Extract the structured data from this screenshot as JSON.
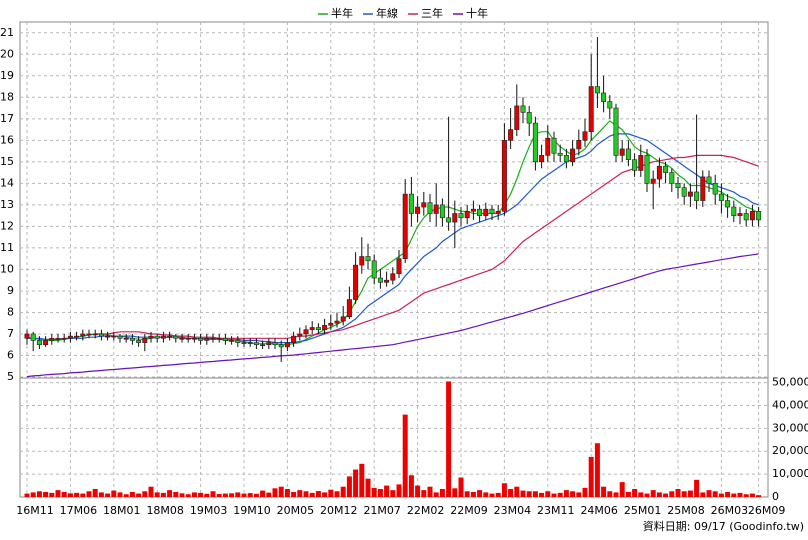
{
  "chart_data": [
    {
      "type": "candlestick",
      "categories": [
        "16M11",
        null,
        null,
        null,
        null,
        null,
        null,
        "17M06",
        null,
        null,
        null,
        null,
        null,
        null,
        "18M01",
        null,
        null,
        null,
        null,
        null,
        null,
        "18M08",
        null,
        null,
        null,
        null,
        null,
        null,
        "19M03",
        null,
        null,
        null,
        null,
        null,
        null,
        "19M10",
        null,
        null,
        null,
        null,
        null,
        null,
        "20M05",
        null,
        null,
        null,
        null,
        null,
        null,
        "20M12",
        null,
        null,
        null,
        null,
        null,
        null,
        "21M07",
        null,
        null,
        null,
        null,
        null,
        null,
        "22M02",
        null,
        null,
        null,
        null,
        null,
        null,
        "22M09",
        null,
        null,
        null,
        null,
        null,
        null,
        "23M04",
        null,
        null,
        null,
        null,
        null,
        null,
        "23M11",
        null,
        null,
        null,
        null,
        null,
        null,
        "24M06",
        null,
        null,
        null,
        null,
        null,
        null,
        "25M01",
        null,
        null,
        null,
        null,
        null,
        null,
        "25M08",
        null,
        null,
        null,
        null,
        null,
        null,
        "26M03",
        null,
        null,
        null,
        null,
        null,
        "26M09"
      ],
      "open": [
        6.8,
        7.0,
        6.7,
        6.5,
        6.7,
        6.8,
        6.8,
        6.8,
        6.9,
        6.9,
        7.0,
        7.0,
        7.0,
        6.9,
        6.9,
        6.9,
        6.8,
        6.8,
        6.7,
        6.6,
        6.8,
        6.9,
        6.8,
        6.9,
        6.9,
        6.8,
        6.8,
        6.8,
        6.8,
        6.7,
        6.8,
        6.8,
        6.8,
        6.7,
        6.7,
        6.6,
        6.6,
        6.6,
        6.5,
        6.5,
        6.6,
        6.5,
        6.4,
        6.6,
        6.9,
        7.0,
        7.2,
        7.3,
        7.2,
        7.4,
        7.5,
        7.6,
        7.8,
        8.6,
        10.2,
        10.6,
        10.4,
        9.6,
        9.4,
        9.5,
        9.8,
        10.5,
        13.5,
        12.6,
        12.9,
        13.1,
        12.6,
        13.0,
        12.4,
        12.2,
        12.6,
        12.4,
        12.7,
        12.8,
        12.5,
        12.8,
        12.6,
        12.7,
        16.0,
        16.5,
        17.6,
        17.3,
        16.8,
        15.0,
        15.3,
        16.1,
        15.4,
        15.3,
        15.0,
        15.6,
        16.0,
        16.4,
        18.5,
        18.2,
        17.8,
        17.5,
        15.3,
        15.6,
        15.1,
        14.6,
        15.3,
        14.0,
        14.2,
        14.8,
        14.5,
        14.0,
        13.8,
        13.4,
        13.6,
        13.2,
        14.3,
        14.0,
        13.5,
        13.2,
        12.9,
        12.5,
        12.6,
        12.3,
        12.7
      ],
      "high": [
        7.2,
        7.1,
        6.9,
        6.9,
        7.0,
        7.0,
        7.0,
        7.1,
        7.1,
        7.2,
        7.2,
        7.2,
        7.2,
        7.1,
        7.1,
        7.0,
        7.0,
        7.0,
        6.9,
        7.0,
        7.1,
        7.0,
        7.1,
        7.1,
        7.0,
        7.0,
        7.0,
        7.0,
        7.0,
        7.0,
        7.0,
        7.0,
        7.0,
        6.9,
        6.9,
        6.8,
        6.8,
        6.8,
        6.7,
        6.8,
        6.8,
        6.7,
        6.8,
        7.1,
        7.3,
        7.4,
        7.6,
        7.5,
        7.7,
        7.9,
        8.0,
        8.3,
        9.2,
        10.8,
        11.5,
        11.2,
        10.7,
        10.0,
        9.9,
        10.1,
        10.9,
        14.2,
        14.3,
        13.4,
        13.6,
        13.5,
        14.0,
        13.3,
        17.1,
        13.2,
        12.9,
        13.0,
        13.2,
        13.0,
        13.1,
        13.0,
        13.0,
        16.8,
        17.5,
        18.6,
        18.0,
        17.6,
        17.1,
        15.8,
        16.7,
        16.4,
        15.8,
        15.6,
        16.0,
        16.5,
        17.0,
        20.0,
        20.8,
        19.0,
        18.1,
        17.7,
        16.0,
        16.0,
        15.4,
        15.8,
        15.6,
        14.6,
        15.2,
        15.0,
        14.7,
        14.3,
        14.0,
        14.0,
        17.2,
        14.6,
        14.6,
        14.4,
        14.0,
        13.5,
        13.2,
        12.9,
        12.8,
        13.0,
        12.9
      ],
      "low": [
        6.5,
        6.2,
        6.3,
        6.4,
        6.5,
        6.6,
        6.6,
        6.6,
        6.7,
        6.7,
        6.8,
        6.8,
        6.7,
        6.7,
        6.7,
        6.6,
        6.6,
        6.5,
        6.4,
        6.2,
        6.6,
        6.6,
        6.6,
        6.7,
        6.6,
        6.6,
        6.6,
        6.6,
        6.5,
        6.5,
        6.6,
        6.6,
        6.5,
        6.5,
        6.4,
        6.4,
        6.4,
        6.3,
        6.3,
        6.3,
        6.3,
        5.7,
        6.2,
        6.4,
        6.7,
        6.8,
        7.0,
        7.0,
        7.0,
        7.2,
        7.3,
        7.4,
        7.7,
        8.4,
        9.8,
        10.0,
        9.3,
        9.1,
        9.2,
        9.3,
        9.6,
        10.3,
        12.0,
        12.2,
        12.5,
        12.2,
        12.0,
        12.0,
        11.8,
        11.0,
        12.0,
        12.1,
        12.3,
        12.2,
        12.3,
        12.3,
        12.3,
        12.5,
        15.6,
        16.2,
        16.8,
        16.2,
        14.6,
        14.7,
        15.0,
        15.0,
        15.0,
        14.7,
        14.8,
        15.3,
        15.7,
        16.0,
        17.5,
        17.3,
        17.0,
        15.0,
        15.0,
        14.8,
        14.3,
        14.3,
        13.6,
        12.8,
        13.8,
        14.0,
        13.6,
        13.3,
        13.0,
        12.9,
        12.8,
        12.9,
        13.6,
        13.0,
        12.6,
        12.4,
        12.2,
        12.1,
        12.0,
        12.0,
        12.0
      ],
      "close": [
        7.0,
        6.7,
        6.5,
        6.7,
        6.8,
        6.8,
        6.8,
        6.9,
        6.9,
        7.0,
        7.0,
        7.0,
        6.9,
        6.9,
        6.9,
        6.8,
        6.8,
        6.7,
        6.6,
        6.8,
        6.9,
        6.8,
        6.9,
        6.9,
        6.8,
        6.8,
        6.8,
        6.8,
        6.7,
        6.8,
        6.8,
        6.8,
        6.7,
        6.7,
        6.6,
        6.6,
        6.6,
        6.5,
        6.5,
        6.6,
        6.5,
        6.4,
        6.6,
        6.9,
        7.0,
        7.2,
        7.3,
        7.2,
        7.4,
        7.5,
        7.6,
        7.8,
        8.6,
        10.2,
        10.6,
        10.4,
        9.6,
        9.4,
        9.5,
        9.8,
        10.5,
        13.5,
        12.6,
        12.9,
        13.1,
        12.6,
        13.0,
        12.4,
        12.2,
        12.6,
        12.4,
        12.7,
        12.8,
        12.5,
        12.8,
        12.6,
        12.7,
        16.0,
        16.5,
        17.6,
        17.3,
        16.8,
        15.0,
        15.3,
        16.1,
        15.4,
        15.3,
        15.0,
        15.6,
        16.0,
        16.4,
        18.5,
        18.2,
        17.8,
        17.5,
        15.3,
        15.6,
        15.1,
        14.6,
        15.3,
        14.0,
        14.2,
        14.8,
        14.5,
        14.0,
        13.8,
        13.4,
        13.6,
        13.2,
        14.3,
        14.0,
        13.5,
        13.2,
        12.9,
        12.5,
        12.6,
        12.3,
        12.7,
        12.3
      ],
      "up_color": "#e00000",
      "down_color": "#22cc22",
      "series": [
        {
          "name": "半年",
          "color": "#18b018",
          "values": [
            6.85,
            6.8,
            6.75,
            6.7,
            6.7,
            6.7,
            6.75,
            6.8,
            6.85,
            6.9,
            6.95,
            7.0,
            7.0,
            6.95,
            6.9,
            6.9,
            6.85,
            6.8,
            6.75,
            6.75,
            6.8,
            6.85,
            6.85,
            6.85,
            6.85,
            6.8,
            6.8,
            6.8,
            6.75,
            6.75,
            6.75,
            6.75,
            6.7,
            6.7,
            6.65,
            6.65,
            6.6,
            6.55,
            6.55,
            6.55,
            6.55,
            6.5,
            6.5,
            6.55,
            6.6,
            6.75,
            6.9,
            7.05,
            7.2,
            7.3,
            7.45,
            7.6,
            8.0,
            8.5,
            9.0,
            9.6,
            9.8,
            10.0,
            10.2,
            10.4,
            10.6,
            10.8,
            11.4,
            12.0,
            12.4,
            12.7,
            12.8,
            12.9,
            12.9,
            12.8,
            12.7,
            12.7,
            12.6,
            12.6,
            12.6,
            12.6,
            12.6,
            13.0,
            13.5,
            14.2,
            15.0,
            15.7,
            16.3,
            16.4,
            16.4,
            16.0,
            15.7,
            15.5,
            15.3,
            15.4,
            15.6,
            16.0,
            16.3,
            16.6,
            16.9,
            16.7,
            16.5,
            16.1,
            15.7,
            15.5,
            15.4,
            15.2,
            15.0,
            14.9,
            14.7,
            14.4,
            14.2,
            13.9,
            13.9,
            13.9,
            13.8,
            13.7,
            13.6,
            13.4,
            13.3,
            13.1,
            12.9,
            12.8,
            12.6
          ]
        },
        {
          "name": "年線",
          "color": "#1e5ad2",
          "values": [
            6.8,
            6.8,
            6.8,
            6.75,
            6.75,
            6.75,
            6.8,
            6.8,
            6.8,
            6.8,
            6.85,
            6.85,
            6.9,
            6.9,
            6.9,
            6.9,
            6.9,
            6.9,
            6.85,
            6.85,
            6.85,
            6.85,
            6.85,
            6.85,
            6.85,
            6.85,
            6.8,
            6.8,
            6.8,
            6.8,
            6.8,
            6.8,
            6.75,
            6.75,
            6.75,
            6.7,
            6.7,
            6.7,
            6.65,
            6.65,
            6.6,
            6.6,
            6.6,
            6.6,
            6.65,
            6.7,
            6.8,
            6.9,
            7.0,
            7.1,
            7.2,
            7.3,
            7.5,
            7.7,
            8.0,
            8.3,
            8.5,
            8.7,
            8.9,
            9.1,
            9.3,
            9.7,
            10.0,
            10.3,
            10.6,
            10.8,
            11.0,
            11.3,
            11.5,
            11.7,
            11.9,
            12.0,
            12.1,
            12.2,
            12.3,
            12.4,
            12.5,
            12.6,
            12.8,
            13.0,
            13.3,
            13.6,
            13.9,
            14.2,
            14.4,
            14.6,
            14.8,
            15.0,
            15.1,
            15.2,
            15.3,
            15.5,
            15.8,
            16.0,
            16.2,
            16.3,
            16.3,
            16.3,
            16.2,
            16.1,
            16.0,
            15.8,
            15.6,
            15.4,
            15.2,
            15.0,
            14.8,
            14.6,
            14.4,
            14.2,
            14.0,
            13.9,
            13.8,
            13.7,
            13.6,
            13.4,
            13.3,
            13.1,
            13.0
          ]
        },
        {
          "name": "三年",
          "color": "#d0205a",
          "values": [
            null,
            null,
            null,
            null,
            null,
            null,
            null,
            null,
            null,
            null,
            null,
            7.0,
            7.0,
            7.0,
            7.05,
            7.1,
            7.1,
            7.1,
            7.1,
            7.05,
            7.0,
            7.0,
            6.95,
            6.95,
            6.9,
            6.9,
            6.9,
            6.85,
            6.85,
            6.85,
            6.85,
            6.8,
            6.8,
            6.8,
            6.8,
            6.8,
            6.8,
            6.8,
            6.8,
            6.8,
            6.8,
            6.8,
            6.8,
            6.85,
            6.9,
            6.9,
            6.95,
            7.0,
            7.05,
            7.1,
            7.15,
            7.2,
            7.3,
            7.4,
            7.5,
            7.6,
            7.7,
            7.8,
            7.9,
            8.0,
            8.1,
            8.3,
            8.5,
            8.7,
            8.9,
            9.0,
            9.1,
            9.2,
            9.3,
            9.4,
            9.5,
            9.6,
            9.7,
            9.8,
            9.9,
            10.0,
            10.2,
            10.4,
            10.7,
            11.0,
            11.3,
            11.5,
            11.7,
            11.9,
            12.1,
            12.3,
            12.5,
            12.7,
            12.9,
            13.1,
            13.3,
            13.5,
            13.7,
            13.9,
            14.1,
            14.3,
            14.5,
            14.6,
            14.7,
            14.8,
            14.9,
            15.0,
            15.05,
            15.1,
            15.15,
            15.2,
            15.2,
            15.25,
            15.3,
            15.3,
            15.3,
            15.3,
            15.3,
            15.25,
            15.2,
            15.1,
            15.0,
            14.9,
            14.8
          ]
        },
        {
          "name": "十年",
          "color": "#6a10c0",
          "values": [
            5.02,
            5.05,
            5.07,
            5.1,
            5.12,
            5.14,
            5.16,
            5.19,
            5.21,
            5.23,
            5.26,
            5.28,
            5.3,
            5.33,
            5.35,
            5.37,
            5.4,
            5.42,
            5.44,
            5.47,
            5.49,
            5.51,
            5.54,
            5.56,
            5.58,
            5.61,
            5.63,
            5.65,
            5.68,
            5.7,
            5.72,
            5.75,
            5.77,
            5.79,
            5.82,
            5.84,
            5.86,
            5.89,
            5.91,
            5.93,
            5.96,
            5.98,
            6.0,
            6.02,
            6.05,
            6.08,
            6.11,
            6.14,
            6.17,
            6.2,
            6.23,
            6.26,
            6.29,
            6.32,
            6.35,
            6.38,
            6.41,
            6.44,
            6.47,
            6.5,
            6.56,
            6.62,
            6.68,
            6.74,
            6.8,
            6.86,
            6.92,
            6.98,
            7.04,
            7.1,
            7.16,
            7.24,
            7.32,
            7.4,
            7.48,
            7.56,
            7.64,
            7.72,
            7.8,
            7.88,
            7.96,
            8.05,
            8.14,
            8.23,
            8.32,
            8.41,
            8.5,
            8.59,
            8.68,
            8.77,
            8.86,
            8.95,
            9.04,
            9.13,
            9.22,
            9.31,
            9.4,
            9.49,
            9.58,
            9.67,
            9.76,
            9.85,
            9.93,
            10.0,
            10.05,
            10.1,
            10.15,
            10.2,
            10.25,
            10.3,
            10.35,
            10.4,
            10.45,
            10.5,
            10.55,
            10.6,
            10.64,
            10.68,
            10.72
          ]
        }
      ],
      "ylim": [
        5,
        21.5
      ],
      "yticks": [
        5,
        6,
        7,
        8,
        9,
        10,
        11,
        12,
        13,
        14,
        15,
        16,
        17,
        18,
        19,
        20,
        21
      ],
      "grid": true,
      "legend": "top"
    },
    {
      "type": "bar",
      "color": "#ee0000",
      "values": [
        1500,
        2000,
        2500,
        2200,
        1800,
        3000,
        2200,
        1600,
        1800,
        1500,
        2500,
        3500,
        2000,
        1500,
        2800,
        2000,
        1200,
        2200,
        1500,
        2500,
        4500,
        2000,
        1800,
        3000,
        2200,
        1600,
        1200,
        2000,
        1800,
        1400,
        2500,
        1300,
        1500,
        1600,
        2000,
        1500,
        1700,
        1400,
        2800,
        1900,
        3800,
        4500,
        3500,
        2200,
        3000,
        2500,
        1800,
        2600,
        2000,
        3200,
        2500,
        4500,
        9000,
        12000,
        14500,
        8000,
        4000,
        3500,
        5000,
        3000,
        5500,
        36000,
        9500,
        5000,
        3000,
        4500,
        2000,
        3500,
        50500,
        3800,
        8500,
        2500,
        2200,
        3000,
        2000,
        1500,
        1800,
        6000,
        3500,
        4500,
        2800,
        2500,
        2500,
        1800,
        2500,
        1500,
        1800,
        3000,
        2500,
        2000,
        4000,
        17500,
        23500,
        4500,
        2500,
        2000,
        6500,
        2200,
        3500,
        2000,
        1500,
        3000,
        2000,
        1500,
        2500,
        3500,
        2500,
        2800,
        7500,
        2000,
        3000,
        2500,
        1500,
        2200,
        1500,
        1800,
        1200,
        1500,
        800
      ],
      "ylim": [
        0,
        52000
      ],
      "yticks": [
        0,
        {
          "value": 10000,
          "label": "10,000"
        },
        {
          "value": 20000,
          "label": "20,000"
        },
        {
          "value": 30000,
          "label": "30,000"
        },
        {
          "value": 40000,
          "label": "40,000"
        },
        {
          "value": 50000,
          "label": "50,000"
        }
      ],
      "grid": true,
      "axis_side": "right"
    }
  ],
  "source_note": "資料日期: 09/17  (Goodinfo.tw)"
}
